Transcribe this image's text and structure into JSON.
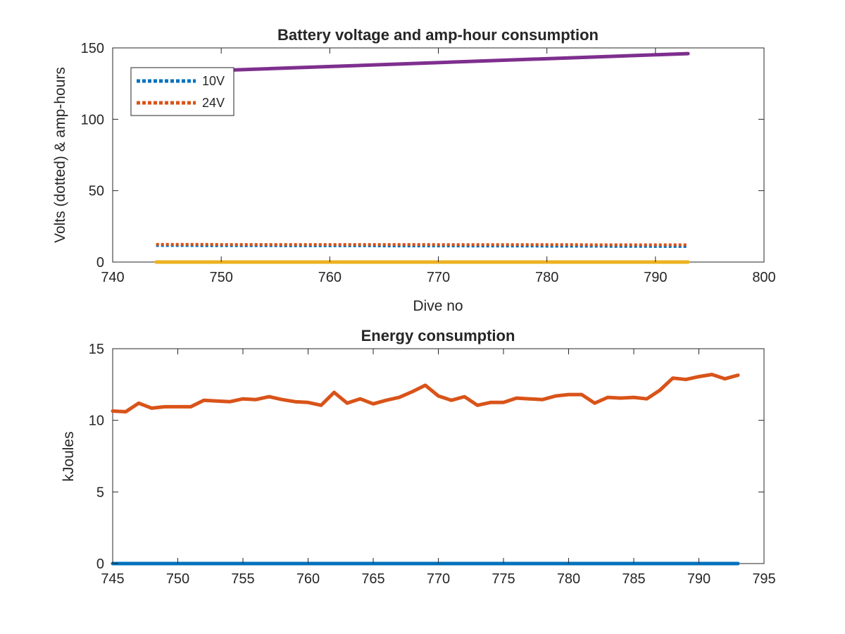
{
  "chart_data": [
    {
      "type": "line",
      "title": "Battery voltage and amp-hour consumption",
      "xlabel": "Dive no",
      "ylabel": "Volts (dotted) & amp-hours",
      "xlim": [
        740,
        800
      ],
      "ylim": [
        0,
        150
      ],
      "xticks": [
        740,
        750,
        760,
        770,
        780,
        790,
        800
      ],
      "yticks": [
        0,
        50,
        100,
        150
      ],
      "grid": false,
      "legend_position": "top-left",
      "series": [
        {
          "name": "10V",
          "style": "dotted",
          "color": "#0072BD",
          "x": [
            744,
            745,
            746,
            747,
            748,
            749,
            750,
            751,
            752,
            753,
            754,
            755,
            756,
            757,
            758,
            759,
            760,
            761,
            762,
            763,
            764,
            765,
            766,
            767,
            768,
            769,
            770,
            771,
            772,
            773,
            774,
            775,
            776,
            777,
            778,
            779,
            780,
            781,
            782,
            783,
            784,
            785,
            786,
            787,
            788,
            789,
            790,
            791,
            792,
            793
          ],
          "y": [
            11.6,
            11.6,
            11.6,
            11.6,
            11.5,
            11.5,
            11.5,
            11.5,
            11.5,
            11.5,
            11.5,
            11.5,
            11.4,
            11.4,
            11.4,
            11.4,
            11.4,
            11.4,
            11.4,
            11.4,
            11.4,
            11.3,
            11.3,
            11.3,
            11.3,
            11.3,
            11.3,
            11.3,
            11.3,
            11.2,
            11.2,
            11.2,
            11.2,
            11.2,
            11.2,
            11.2,
            11.1,
            11.1,
            11.1,
            11.1,
            11.1,
            11.1,
            11.0,
            11.0,
            11.0,
            11.0,
            10.9,
            10.9,
            10.9,
            10.9
          ]
        },
        {
          "name": "24V",
          "style": "dotted",
          "color": "#D95319",
          "x": [
            744,
            745,
            746,
            747,
            748,
            749,
            750,
            751,
            752,
            753,
            754,
            755,
            756,
            757,
            758,
            759,
            760,
            761,
            762,
            763,
            764,
            765,
            766,
            767,
            768,
            769,
            770,
            771,
            772,
            773,
            774,
            775,
            776,
            777,
            778,
            779,
            780,
            781,
            782,
            783,
            784,
            785,
            786,
            787,
            788,
            789,
            790,
            791,
            792,
            793
          ],
          "y": [
            12.4,
            12.4,
            12.4,
            12.4,
            12.4,
            12.4,
            12.3,
            12.3,
            12.3,
            12.3,
            12.3,
            12.3,
            12.3,
            12.3,
            12.3,
            12.3,
            12.3,
            12.3,
            12.3,
            12.3,
            12.3,
            12.3,
            12.3,
            12.3,
            12.3,
            12.3,
            12.2,
            12.2,
            12.2,
            12.2,
            12.2,
            12.2,
            12.2,
            12.2,
            12.2,
            12.2,
            12.2,
            12.2,
            12.2,
            12.2,
            12.1,
            12.1,
            12.1,
            12.1,
            12.1,
            12.1,
            12.1,
            12.1,
            12.1,
            12.1
          ]
        },
        {
          "style": "solid",
          "color": "#EDB120",
          "x": [
            744,
            793
          ],
          "y": [
            0,
            0
          ]
        },
        {
          "style": "solid",
          "color": "#7E2F8E",
          "x": [
            751,
            793
          ],
          "y": [
            134.5,
            146
          ]
        }
      ]
    },
    {
      "type": "line",
      "title": "Energy consumption",
      "xlabel": "",
      "ylabel": "kJoules",
      "xlim": [
        745,
        795
      ],
      "ylim": [
        0,
        15
      ],
      "xticks": [
        745,
        750,
        755,
        760,
        765,
        770,
        775,
        780,
        785,
        790,
        795
      ],
      "yticks": [
        0,
        5,
        10,
        15
      ],
      "grid": false,
      "series": [
        {
          "style": "solid",
          "color": "#0072BD",
          "x": [
            745,
            793
          ],
          "y": [
            0,
            0
          ]
        },
        {
          "style": "solid",
          "color": "#D95319",
          "x": [
            745,
            746,
            747,
            748,
            749,
            750,
            751,
            752,
            753,
            754,
            755,
            756,
            757,
            758,
            759,
            760,
            761,
            762,
            763,
            764,
            765,
            766,
            767,
            768,
            769,
            770,
            771,
            772,
            773,
            774,
            775,
            776,
            777,
            778,
            779,
            780,
            781,
            782,
            783,
            784,
            785,
            786,
            787,
            788,
            789,
            790,
            791,
            792,
            793
          ],
          "y": [
            10.65,
            10.6,
            11.2,
            10.85,
            10.95,
            10.95,
            10.95,
            11.4,
            11.35,
            11.3,
            11.5,
            11.45,
            11.65,
            11.45,
            11.3,
            11.25,
            11.05,
            11.95,
            11.2,
            11.5,
            11.15,
            11.4,
            11.6,
            12.0,
            12.45,
            11.7,
            11.4,
            11.65,
            11.05,
            11.25,
            11.25,
            11.55,
            11.5,
            11.45,
            11.7,
            11.8,
            11.8,
            11.2,
            11.6,
            11.55,
            11.6,
            11.5,
            12.1,
            12.95,
            12.85,
            13.05,
            13.2,
            12.9,
            13.15
          ]
        }
      ]
    }
  ],
  "legend": {
    "items": [
      {
        "label": "10V",
        "color": "#0072BD"
      },
      {
        "label": "24V",
        "color": "#D95319"
      }
    ]
  }
}
